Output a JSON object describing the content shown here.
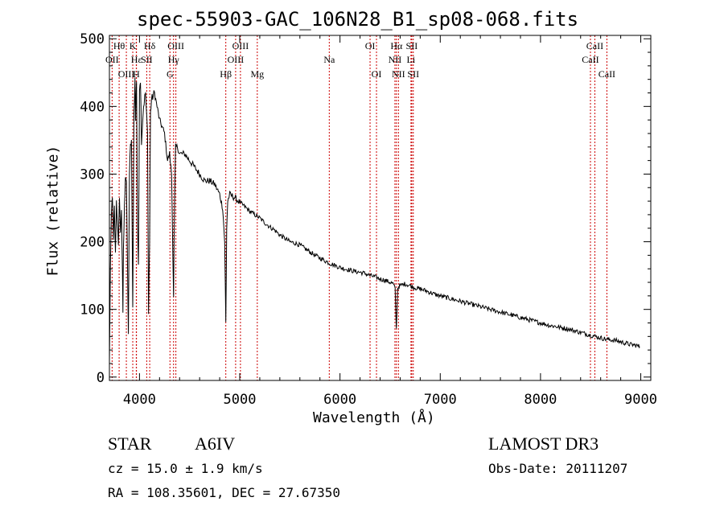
{
  "chart_data": {
    "type": "line",
    "title": "spec-55903-GAC_106N28_B1_sp08-068.fits",
    "xlabel": "Wavelength (Å)",
    "ylabel": "Flux (relative)",
    "xlim": [
      3700,
      9100
    ],
    "ylim": [
      -5,
      505
    ],
    "xticks": [
      4000,
      5000,
      6000,
      7000,
      8000,
      9000
    ],
    "yticks": [
      0,
      100,
      200,
      300,
      400,
      500
    ],
    "grid": false,
    "series": [
      {
        "name": "Flux",
        "x": [
          3700,
          3710,
          3720,
          3730,
          3740,
          3750,
          3760,
          3770,
          3780,
          3790,
          3800,
          3810,
          3820,
          3830,
          3835,
          3840,
          3850,
          3860,
          3870,
          3880,
          3889,
          3900,
          3910,
          3920,
          3933,
          3945,
          3955,
          3960,
          3970,
          3980,
          3990,
          4000,
          4010,
          4020,
          4040,
          4060,
          4080,
          4090,
          4101,
          4110,
          4120,
          4150,
          4200,
          4250,
          4280,
          4300,
          4320,
          4340,
          4345,
          4350,
          4360,
          4380,
          4400,
          4450,
          4500,
          4550,
          4600,
          4650,
          4700,
          4750,
          4800,
          4830,
          4850,
          4861,
          4870,
          4880,
          4900,
          4950,
          5000,
          5050,
          5100,
          5150,
          5200,
          5250,
          5300,
          5350,
          5400,
          5450,
          5500,
          5550,
          5600,
          5650,
          5700,
          5750,
          5800,
          5850,
          5900,
          5950,
          6000,
          6050,
          6100,
          6150,
          6200,
          6250,
          6300,
          6350,
          6400,
          6450,
          6500,
          6530,
          6550,
          6562,
          6575,
          6590,
          6620,
          6650,
          6700,
          6750,
          6800,
          6850,
          6900,
          6950,
          7000,
          7050,
          7100,
          7150,
          7200,
          7250,
          7300,
          7350,
          7400,
          7450,
          7500,
          7550,
          7600,
          7650,
          7700,
          7750,
          7800,
          7850,
          7900,
          7950,
          8000,
          8050,
          8100,
          8150,
          8200,
          8250,
          8300,
          8350,
          8400,
          8450,
          8500,
          8550,
          8600,
          8650,
          8700,
          8750,
          8800,
          8850,
          8900,
          8950,
          8990
        ],
        "y": [
          20,
          160,
          240,
          270,
          200,
          250,
          180,
          260,
          230,
          190,
          270,
          210,
          250,
          150,
          90,
          190,
          250,
          300,
          290,
          170,
          60,
          300,
          340,
          350,
          100,
          390,
          440,
          380,
          440,
          230,
          160,
          430,
          440,
          350,
          400,
          420,
          360,
          100,
          200,
          390,
          410,
          420,
          380,
          360,
          320,
          330,
          300,
          120,
          200,
          250,
          340,
          340,
          330,
          330,
          320,
          310,
          300,
          290,
          290,
          285,
          270,
          250,
          200,
          80,
          220,
          260,
          270,
          265,
          258,
          252,
          245,
          240,
          235,
          228,
          222,
          217,
          210,
          205,
          200,
          198,
          195,
          190,
          185,
          180,
          176,
          172,
          168,
          165,
          162,
          160,
          158,
          156,
          155,
          153,
          150,
          148,
          145,
          143,
          140,
          138,
          130,
          70,
          130,
          135,
          136,
          138,
          135,
          132,
          130,
          128,
          125,
          122,
          120,
          118,
          116,
          114,
          112,
          110,
          108,
          106,
          104,
          102,
          100,
          98,
          96,
          94,
          92,
          90,
          88,
          86,
          84,
          82,
          80,
          78,
          76,
          75,
          73,
          72,
          70,
          68,
          66,
          64,
          62,
          60,
          58,
          56,
          55,
          54,
          52,
          50,
          48,
          47,
          45
        ]
      }
    ],
    "lines": [
      {
        "name": "Hθ",
        "wavelength": 3797,
        "row": 1,
        "color": "#cc0000"
      },
      {
        "name": "OII",
        "wavelength": 3727,
        "row": 2,
        "color": "#cc0000"
      },
      {
        "name": "OIII",
        "wavelength": 3869,
        "row": 3,
        "color": "#cc0000"
      },
      {
        "name": "K",
        "wavelength": 3933,
        "row": 1,
        "color": "#cc0000"
      },
      {
        "name": "Hε",
        "wavelength": 3970,
        "row": 2,
        "color": "#cc0000"
      },
      {
        "name": "H",
        "wavelength": 3968,
        "row": 3,
        "color": "#cc0000"
      },
      {
        "name": "SII",
        "wavelength": 4072,
        "row": 2,
        "color": "#cc0000"
      },
      {
        "name": "Hδ",
        "wavelength": 4102,
        "row": 1,
        "color": "#cc0000"
      },
      {
        "name": "OIII",
        "wavelength": 4363,
        "row": 1,
        "color": "#cc0000"
      },
      {
        "name": "Hγ",
        "wavelength": 4340,
        "row": 2,
        "color": "#cc0000"
      },
      {
        "name": "G",
        "wavelength": 4304,
        "row": 3,
        "color": "#cc0000"
      },
      {
        "name": "Hβ",
        "wavelength": 4861,
        "row": 3,
        "color": "#cc0000"
      },
      {
        "name": "OIII",
        "wavelength": 5007,
        "row": 1,
        "color": "#cc0000"
      },
      {
        "name": "OIII",
        "wavelength": 4959,
        "row": 2,
        "color": "#cc0000"
      },
      {
        "name": "Mg",
        "wavelength": 5175,
        "row": 3,
        "color": "#cc0000"
      },
      {
        "name": "Na",
        "wavelength": 5893,
        "row": 2,
        "color": "#cc0000"
      },
      {
        "name": "OI",
        "wavelength": 6300,
        "row": 1,
        "color": "#cc0000"
      },
      {
        "name": "OI",
        "wavelength": 6364,
        "row": 3,
        "color": "#cc0000"
      },
      {
        "name": "Hα",
        "wavelength": 6563,
        "row": 1,
        "color": "#cc0000"
      },
      {
        "name": "NII",
        "wavelength": 6548,
        "row": 2,
        "color": "#cc0000"
      },
      {
        "name": "NII",
        "wavelength": 6583,
        "row": 3,
        "color": "#cc0000"
      },
      {
        "name": "SII",
        "wavelength": 6716,
        "row": 1,
        "color": "#cc0000"
      },
      {
        "name": "Li",
        "wavelength": 6708,
        "row": 2,
        "color": "#cc0000"
      },
      {
        "name": "SII",
        "wavelength": 6731,
        "row": 3,
        "color": "#cc0000"
      },
      {
        "name": "CaII",
        "wavelength": 8542,
        "row": 1,
        "color": "#cc0000"
      },
      {
        "name": "CaII",
        "wavelength": 8498,
        "row": 2,
        "color": "#cc0000"
      },
      {
        "name": "CaII",
        "wavelength": 8662,
        "row": 3,
        "color": "#cc0000"
      }
    ]
  },
  "info": {
    "class": "STAR",
    "subclass": "A6IV",
    "survey": "LAMOST DR3",
    "cz": "cz = 15.0 ± 1.9 km/s",
    "obs_date": "Obs-Date: 20111207",
    "radec": "RA = 108.35601, DEC =  27.67350"
  }
}
